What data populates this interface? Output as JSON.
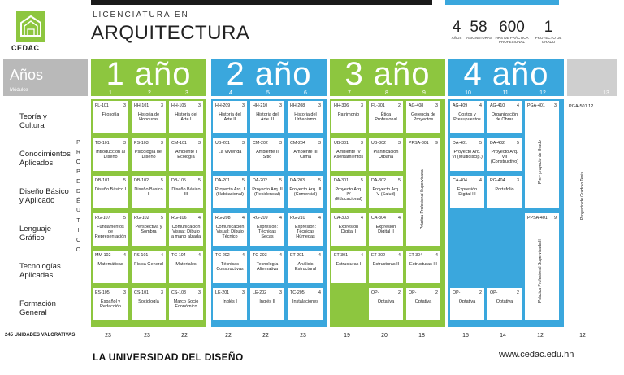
{
  "brand": {
    "logo_text": "CEDAC"
  },
  "header": {
    "subtitle": "LICENCIATURA EN",
    "title": "ARQUITECTURA"
  },
  "stats": [
    {
      "num": "4",
      "label": "AÑOS"
    },
    {
      "num": "58",
      "label": "ASIGNATURAS"
    },
    {
      "num": "600",
      "label": "HRS DE PRÁCTICA PROFESIONAL"
    },
    {
      "num": "1",
      "label": "PROYECTO DE GRADO"
    }
  ],
  "anos": {
    "title": "Años",
    "sub": "Módulos"
  },
  "years": [
    {
      "label": "1 año",
      "color": "#8dc63f",
      "sems": [
        "1",
        "2",
        "3"
      ]
    },
    {
      "label": "2 año",
      "color": "#3aa7dd",
      "sems": [
        "4",
        "5",
        "6"
      ]
    },
    {
      "label": "3 año",
      "color": "#8dc63f",
      "sems": [
        "7",
        "8",
        "9"
      ]
    },
    {
      "label": "4 año",
      "color": "#3aa7dd",
      "sems": [
        "10",
        "11",
        "12"
      ]
    }
  ],
  "extra_sem": "13",
  "rows": [
    "Teoría y Cultura",
    "Conocimientos Aplicados",
    "Diseño Básico y Aplicado",
    "Lenguaje Gráfico",
    "Tecnologías Aplicadas",
    "Formación General"
  ],
  "prope": "PROPEDÉUTICO",
  "y1": [
    [
      [
        "FL-101",
        "3",
        "Filosofía"
      ],
      [
        "HH-101",
        "3",
        "Historia de Honduras"
      ],
      [
        "HH-105",
        "3",
        "Historia del Arte I"
      ]
    ],
    [
      [
        "TD-101",
        "3",
        "Introducción al Diseño"
      ],
      [
        "PS-103",
        "3",
        "Psicología del Diseño"
      ],
      [
        "CM-101",
        "3",
        "Ambiente I Ecología"
      ]
    ],
    [
      [
        "DB-101",
        "5",
        "Diseño Básico I"
      ],
      [
        "DB-102",
        "5",
        "Diseño Básico II"
      ],
      [
        "DB-105",
        "5",
        "Diseño Básico III"
      ]
    ],
    [
      [
        "RG-107",
        "5",
        "Fundamentos de Representación"
      ],
      [
        "RG-102",
        "5",
        "Perspectiva y Sombra"
      ],
      [
        "RG-106",
        "4",
        "Comunicación Visual: Dibujo a mano alzada"
      ]
    ],
    [
      [
        "MM-102",
        "4",
        "Matemáticas"
      ],
      [
        "FS-101",
        "4",
        "Física General"
      ],
      [
        "TC-104",
        "4",
        "Materiales"
      ]
    ],
    [
      [
        "ES-105",
        "3",
        "Español y Redacción"
      ],
      [
        "CS-101",
        "3",
        "Sociología"
      ],
      [
        "CS-103",
        "3",
        "Marco Socio Económico"
      ]
    ]
  ],
  "y2": [
    [
      [
        "HH-209",
        "3",
        "Historia del Arte II"
      ],
      [
        "HH-210",
        "3",
        "Historia del Arte III"
      ],
      [
        "HH-208",
        "3",
        "Historia del Urbanismo"
      ]
    ],
    [
      [
        "UB-201",
        "3",
        "La Vivienda"
      ],
      [
        "CM-202",
        "3",
        "Ambiente II Sitio"
      ],
      [
        "CM-204",
        "3",
        "Ambiente III Clima"
      ]
    ],
    [
      [
        "DA-201",
        "5",
        "Proyecto Arq. I (Habitacional)"
      ],
      [
        "DA-202",
        "5",
        "Proyecto Arq. II (Residencial)"
      ],
      [
        "DA-203",
        "5",
        "Proyecto Arq. III (Comercial)"
      ]
    ],
    [
      [
        "RG-208",
        "4",
        "Comunicación Visual: Dibujo Técnico"
      ],
      [
        "RG-209",
        "4",
        "Expresión: Técnicas Secas"
      ],
      [
        "RG-210",
        "4",
        "Expresión: Técnicas Húmedas"
      ]
    ],
    [
      [
        "TC-202",
        "4",
        "Técnicas Constructivas"
      ],
      [
        "TC-203",
        "4",
        "Tecnología Alternativa"
      ],
      [
        "ET-201",
        "4",
        "Análisis Estructural"
      ]
    ],
    [
      [
        "LE-201",
        "3",
        "Inglés I"
      ],
      [
        "LE-202",
        "3",
        "Inglés II"
      ],
      [
        "TC-205",
        "4",
        "Instalaciones"
      ]
    ]
  ],
  "y3": [
    [
      [
        "HH-306",
        "3",
        "Patrimonio"
      ],
      [
        "FL-301",
        "2",
        "Ética Profesional"
      ],
      [
        "AG-408",
        "3",
        "Gerencia de Proyectos"
      ]
    ],
    [
      [
        "UB-301",
        "3",
        "Ambiente IV Asentamientos"
      ],
      [
        "UB-302",
        "3",
        "Planificación Urbana"
      ],
      [
        "PPSA-301",
        "9",
        ""
      ]
    ],
    [
      [
        "DA-301",
        "5",
        "Proyecto Arq. IV (Educacional)"
      ],
      [
        "DA-302",
        "5",
        "Proyecto Arq. V (Salud)"
      ]
    ],
    [
      [
        "CA-303",
        "4",
        "Expresión Digital I"
      ],
      [
        "CA-304",
        "4",
        "Expresión Digital II"
      ]
    ],
    [
      [
        "ET-301",
        "4",
        "Estructuras I"
      ],
      [
        "ET-302",
        "4",
        "Estructuras II"
      ],
      [
        "ET-304",
        "4",
        "Estructuras III"
      ]
    ],
    [
      [
        "OP-___",
        "2",
        "Optativa"
      ],
      [
        "OP-___",
        "2",
        "Optativa"
      ]
    ]
  ],
  "y4": [
    [
      [
        "AG-409",
        "4",
        "Costos y Presupuestos"
      ],
      [
        "AG-410",
        "4",
        "Organización de Obras"
      ]
    ],
    [
      [
        "DA-401",
        "5",
        "Proyecto Arq. VI (Multidiscip.)"
      ],
      [
        "DA-402",
        "5",
        "Proyecto Arq. VII (Constructivo)"
      ]
    ],
    [
      [
        "CA-404",
        "4",
        "Expresión Digital III"
      ],
      [
        "RG-404",
        "3",
        "Portafolio"
      ]
    ],
    [
      [
        "OP-___",
        "2",
        "Optativa"
      ],
      [
        "OP-___",
        "2",
        "Optativa"
      ]
    ]
  ],
  "ppsa_label": "Práctica Profesional Supervisada I",
  "pga401": {
    "code": "PGA-401",
    "cr": "3",
    "name": "Pre - proyecto de Grado"
  },
  "ppsa401": {
    "code": "PPSA-401",
    "cr": "9",
    "name": "Práctica Profesional Supervisada II"
  },
  "pga501": {
    "code": "PGA-501",
    "cr": "12",
    "name": "Proyecto de Grado o Tesis"
  },
  "footer": {
    "label": "245 UNIDADES VALORATIVAS",
    "totals": [
      "23",
      "23",
      "22",
      "22",
      "22",
      "23",
      "19",
      "20",
      "18",
      "15",
      "14",
      "12",
      "12"
    ]
  },
  "tagline": "LA UNIVERSIDAD DEL DISEÑO",
  "website": "www.cedac.edu.hn"
}
